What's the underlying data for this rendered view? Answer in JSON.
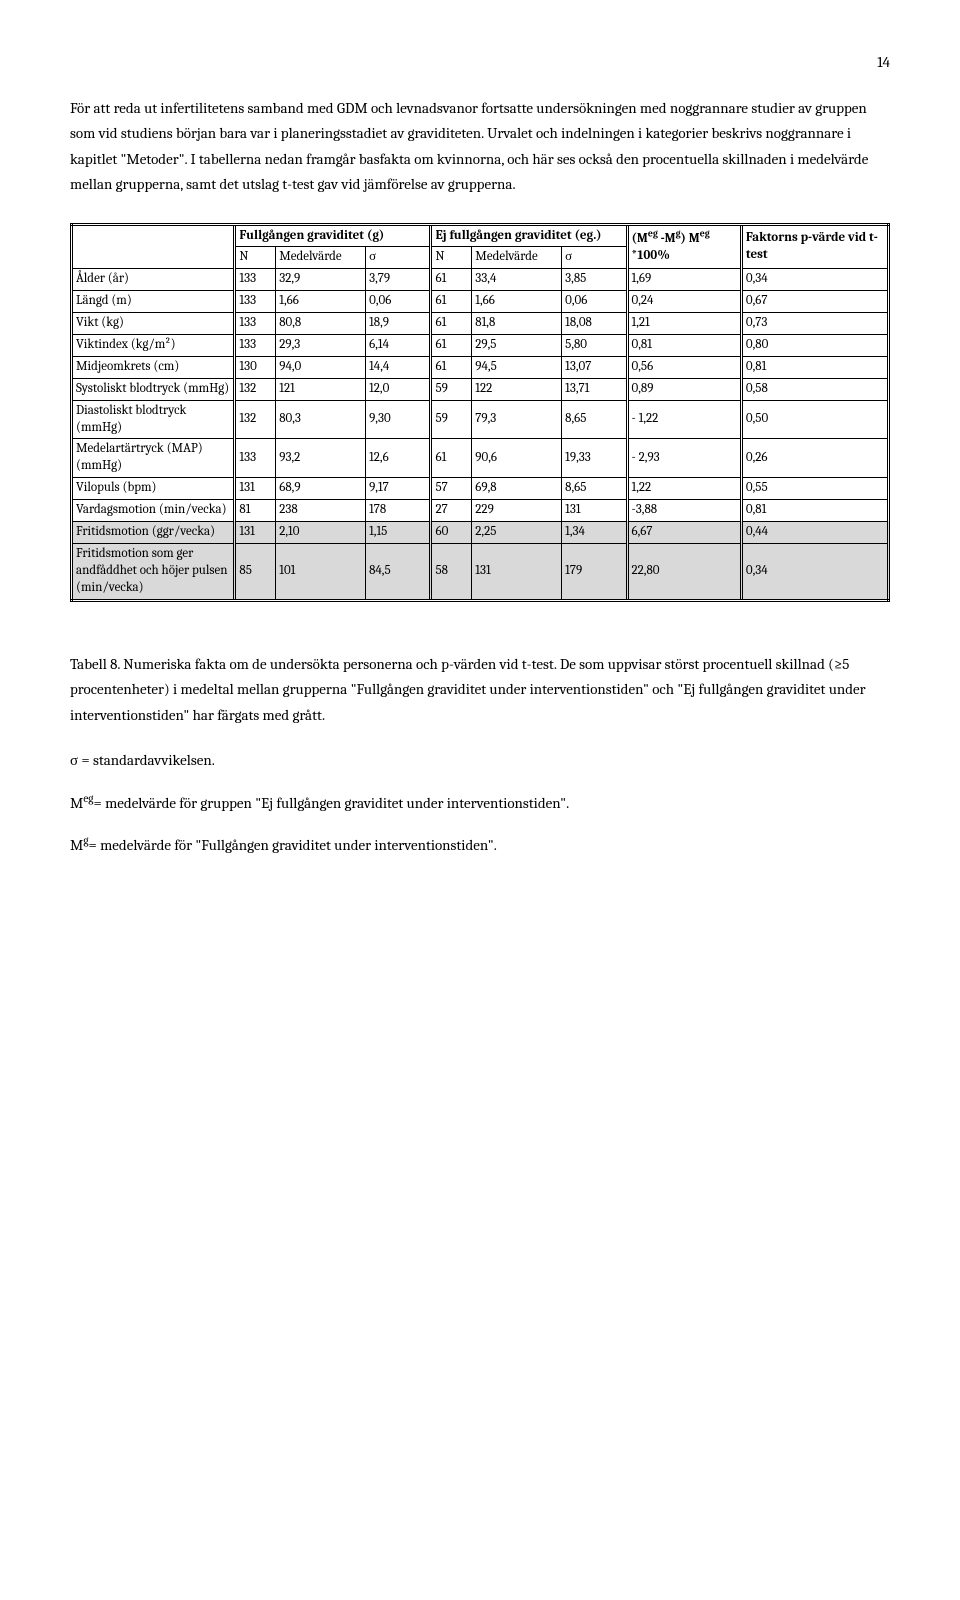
{
  "pageNumber": "14",
  "paragraph": "För att reda ut infertilitetens samband med GDM och levnadsvanor fortsatte undersökningen med noggrannare studier av gruppen som vid studiens början bara var i planeringsstadiet av graviditeten. Urvalet och indelningen i kategorier beskrivs noggrannare i kapitlet \"Metoder\". I tabellerna nedan framgår basfakta om kvinnorna, och här ses också den procentuella skillnaden i medelvärde mellan grupperna, samt det utslag t-test gav vid jämförelse av grupperna.",
  "table": {
    "header": {
      "group1": "Fullgången graviditet (g)",
      "group2": "Ej fullgången graviditet (eg.)",
      "diff_html": "(M<sup>eg</sup> -M<sup>g</sup>) M<sup>eg</sup> *100%",
      "factor": "Faktorns p-värde vid t-test",
      "N": "N",
      "mean": "Medelvärde",
      "sigma": "σ"
    },
    "rows": [
      {
        "label": "Ålder (år)",
        "n1": "133",
        "m1": "32,9",
        "s1": "3,79",
        "n2": "61",
        "m2": "33,4",
        "s2": "3,85",
        "diff": "1,69",
        "p": "0,34",
        "shaded": false
      },
      {
        "label": "Längd (m)",
        "n1": "133",
        "m1": "1,66",
        "s1": "0,06",
        "n2": "61",
        "m2": "1,66",
        "s2": "0,06",
        "diff": "0,24",
        "p": "0,67",
        "shaded": false
      },
      {
        "label": "Vikt (kg)",
        "n1": "133",
        "m1": "80,8",
        "s1": "18,9",
        "n2": "61",
        "m2": "81,8",
        "s2": "18,08",
        "diff": "1,21",
        "p": "0,73",
        "shaded": false
      },
      {
        "label": "Viktindex (kg/m²)",
        "n1": "133",
        "m1": "29,3",
        "s1": "6,14",
        "n2": "61",
        "m2": "29,5",
        "s2": "5,80",
        "diff": "0,81",
        "p": "0,80",
        "shaded": false
      },
      {
        "label": "Midjeomkrets (cm)",
        "n1": "130",
        "m1": "94,0",
        "s1": "14,4",
        "n2": "61",
        "m2": "94,5",
        "s2": "13,07",
        "diff": "0,56",
        "p": "0,81",
        "shaded": false
      },
      {
        "label": "Systoliskt blodtryck (mmHg)",
        "n1": "132",
        "m1": "121",
        "s1": "12,0",
        "n2": "59",
        "m2": "122",
        "s2": "13,71",
        "diff": "0,89",
        "p": "0,58",
        "shaded": false
      },
      {
        "label": "Diastoliskt blodtryck (mmHg)",
        "n1": "132",
        "m1": "80,3",
        "s1": "9,30",
        "n2": "59",
        "m2": "79,3",
        "s2": "8,65",
        "diff": "- 1,22",
        "p": "0,50",
        "shaded": false
      },
      {
        "label": "Medelartärtryck (MAP) (mmHg)",
        "n1": "133",
        "m1": "93,2",
        "s1": "12,6",
        "n2": "61",
        "m2": "90,6",
        "s2": "19,33",
        "diff": "- 2,93",
        "p": "0,26",
        "shaded": false
      },
      {
        "label": "Vilopuls (bpm)",
        "n1": "131",
        "m1": "68,9",
        "s1": "9,17",
        "n2": "57",
        "m2": "69,8",
        "s2": "8,65",
        "diff": "1,22",
        "p": "0,55",
        "shaded": false
      },
      {
        "label": "Vardagsmotion (min/vecka)",
        "n1": "81",
        "m1": "238",
        "s1": "178",
        "n2": "27",
        "m2": "229",
        "s2": "131",
        "diff": "-3,88",
        "p": "0,81",
        "shaded": false
      },
      {
        "label": "Fritidsmotion (ggr/vecka)",
        "n1": "131",
        "m1": "2,10",
        "s1": "1,15",
        "n2": "60",
        "m2": "2,25",
        "s2": "1,34",
        "diff": "6,67",
        "p": "0,44",
        "shaded": true
      },
      {
        "label": "Fritidsmotion som ger andfåddhet och höjer pulsen (min/vecka)",
        "n1": "85",
        "m1": "101",
        "s1": "84,5",
        "n2": "58",
        "m2": "131",
        "s2": "179",
        "diff": "22,80",
        "p": "0,34",
        "shaded": true
      }
    ]
  },
  "caption": "Tabell 8. Numeriska fakta om de undersökta personerna och p-värden vid t-test. De som uppvisar störst procentuell skillnad (≥5 procentenheter) i medeltal mellan grupperna \"Fullgången graviditet under interventionstiden\" och \"Ej fullgången graviditet under interventionstiden\" har färgats med grått.",
  "legend1": " σ = standardavvikelsen.",
  "legend2_html": "M<sup>eg</sup>= medelvärde för gruppen \"Ej fullgången graviditet under interventionstiden\".",
  "legend3_html": "M<sup>g</sup>= medelvärde för \"Fullgången graviditet under interventionstiden\".",
  "colWidths": [
    "20%",
    "5%",
    "11%",
    "8%",
    "5%",
    "11%",
    "8%",
    "14%",
    "18%"
  ]
}
